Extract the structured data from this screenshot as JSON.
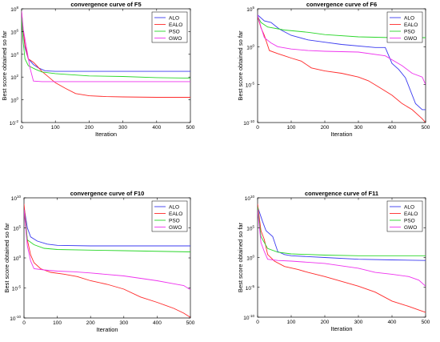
{
  "chart_data": [
    {
      "type": "line",
      "title": "convergence curve of F5",
      "xlabel": "Iteration",
      "ylabel": "Best score obtained so far",
      "xlim": [
        0,
        500
      ],
      "ylim_exp": [
        -2,
        8
      ],
      "x_ticks": [
        0,
        100,
        200,
        300,
        400,
        500
      ],
      "y_ticks": [
        {
          "base": "10",
          "exp": "8"
        },
        {
          "base": "10",
          "exp": "6"
        },
        {
          "base": "10",
          "exp": "4"
        },
        {
          "base": "10",
          "exp": "2"
        },
        {
          "base": "10",
          "exp": "0"
        },
        {
          "base": "10",
          "exp": "-2"
        }
      ],
      "y_scale": "log",
      "legend_position": "top-right",
      "series": [
        {
          "name": "ALO",
          "color": "#3b3bf0",
          "points": [
            [
              0,
              7.4
            ],
            [
              5,
              6.0
            ],
            [
              10,
              4.6
            ],
            [
              20,
              3.6
            ],
            [
              35,
              3.1
            ],
            [
              50,
              2.8
            ],
            [
              70,
              2.55
            ],
            [
              100,
              2.5
            ],
            [
              200,
              2.5
            ],
            [
              500,
              2.5
            ]
          ]
        },
        {
          "name": "EALO",
          "color": "#ff2a2a",
          "points": [
            [
              0,
              7.8
            ],
            [
              3,
              6.6
            ],
            [
              10,
              4.8
            ],
            [
              20,
              3.6
            ],
            [
              35,
              3.3
            ],
            [
              45,
              3.0
            ],
            [
              60,
              2.5
            ],
            [
              80,
              2.0
            ],
            [
              100,
              1.5
            ],
            [
              130,
              1.0
            ],
            [
              160,
              0.55
            ],
            [
              200,
              0.35
            ],
            [
              250,
              0.28
            ],
            [
              300,
              0.25
            ],
            [
              400,
              0.22
            ],
            [
              500,
              0.22
            ]
          ]
        },
        {
          "name": "PSO",
          "color": "#2ad62a",
          "points": [
            [
              0,
              7.2
            ],
            [
              5,
              5.0
            ],
            [
              10,
              3.6
            ],
            [
              20,
              3.0
            ],
            [
              40,
              2.7
            ],
            [
              60,
              2.45
            ],
            [
              100,
              2.3
            ],
            [
              200,
              2.1
            ],
            [
              300,
              2.05
            ],
            [
              400,
              1.95
            ],
            [
              500,
              1.9
            ]
          ]
        },
        {
          "name": "GWO",
          "color": "#ee33ee",
          "points": [
            [
              0,
              7.8
            ],
            [
              5,
              6.2
            ],
            [
              15,
              4.5
            ],
            [
              25,
              2.8
            ],
            [
              35,
              1.65
            ],
            [
              60,
              1.6
            ],
            [
              500,
              1.6
            ]
          ]
        }
      ]
    },
    {
      "type": "line",
      "title": "convergence curve of F6",
      "xlabel": "Iteration",
      "ylabel": "Best score obtained so far",
      "xlim": [
        0,
        500
      ],
      "ylim_exp": [
        -10,
        5
      ],
      "x_ticks": [
        0,
        100,
        200,
        300,
        400,
        500
      ],
      "y_ticks": [
        {
          "base": "10",
          "exp": "5"
        },
        {
          "base": "10",
          "exp": "0"
        },
        {
          "base": "10",
          "exp": "-5"
        },
        {
          "base": "10",
          "exp": "-10"
        }
      ],
      "y_scale": "log",
      "legend_position": "top-right",
      "series": [
        {
          "name": "ALO",
          "color": "#3b3bf0",
          "points": [
            [
              0,
              4.2
            ],
            [
              20,
              3.4
            ],
            [
              40,
              3.2
            ],
            [
              60,
              2.5
            ],
            [
              70,
              2.2
            ],
            [
              100,
              1.5
            ],
            [
              150,
              0.9
            ],
            [
              200,
              0.6
            ],
            [
              250,
              0.3
            ],
            [
              350,
              -0.1
            ],
            [
              380,
              -0.1
            ],
            [
              400,
              -2.2
            ],
            [
              420,
              -3.0
            ],
            [
              440,
              -4.1
            ],
            [
              470,
              -7.5
            ],
            [
              490,
              -8.3
            ],
            [
              500,
              -8.3
            ]
          ]
        },
        {
          "name": "EALO",
          "color": "#ff2a2a",
          "points": [
            [
              0,
              4.0
            ],
            [
              10,
              2.5
            ],
            [
              20,
              1.5
            ],
            [
              35,
              -0.5
            ],
            [
              60,
              -0.9
            ],
            [
              80,
              -1.2
            ],
            [
              100,
              -1.5
            ],
            [
              130,
              -1.9
            ],
            [
              160,
              -2.8
            ],
            [
              200,
              -3.2
            ],
            [
              250,
              -3.5
            ],
            [
              300,
              -4.0
            ],
            [
              330,
              -4.5
            ],
            [
              360,
              -5.3
            ],
            [
              400,
              -6.4
            ],
            [
              430,
              -7.5
            ],
            [
              460,
              -8.3
            ],
            [
              490,
              -9.5
            ],
            [
              500,
              -10.0
            ]
          ]
        },
        {
          "name": "PSO",
          "color": "#2ad62a",
          "points": [
            [
              0,
              4.0
            ],
            [
              10,
              3.2
            ],
            [
              30,
              2.6
            ],
            [
              80,
              2.2
            ],
            [
              150,
              1.9
            ],
            [
              200,
              1.6
            ],
            [
              300,
              1.3
            ],
            [
              400,
              1.2
            ],
            [
              500,
              1.2
            ]
          ]
        },
        {
          "name": "GWO",
          "color": "#ee33ee",
          "points": [
            [
              0,
              4.2
            ],
            [
              10,
              2.6
            ],
            [
              20,
              1.2
            ],
            [
              40,
              0.5
            ],
            [
              60,
              0.0
            ],
            [
              100,
              -0.3
            ],
            [
              150,
              -0.5
            ],
            [
              200,
              -0.6
            ],
            [
              300,
              -0.7
            ],
            [
              380,
              -1.2
            ],
            [
              430,
              -2.5
            ],
            [
              460,
              -3.5
            ],
            [
              490,
              -4.0
            ],
            [
              500,
              -5.0
            ]
          ]
        }
      ]
    },
    {
      "type": "line",
      "title": "convergence curve of F10",
      "xlabel": "Iteration",
      "ylabel": "Best score obtained so far",
      "xlim": [
        0,
        500
      ],
      "ylim_exp": [
        -10,
        10
      ],
      "x_ticks": [
        0,
        100,
        200,
        300,
        400,
        500
      ],
      "y_ticks": [
        {
          "base": "10",
          "exp": "10"
        },
        {
          "base": "10",
          "exp": "5"
        },
        {
          "base": "10",
          "exp": "0"
        },
        {
          "base": "10",
          "exp": "-5"
        },
        {
          "base": "10",
          "exp": "-10"
        }
      ],
      "y_scale": "log",
      "legend_position": "top-right",
      "series": [
        {
          "name": "ALO",
          "color": "#3b3bf0",
          "points": [
            [
              0,
              8.5
            ],
            [
              10,
              5.0
            ],
            [
              20,
              3.5
            ],
            [
              40,
              2.8
            ],
            [
              70,
              2.3
            ],
            [
              100,
              2.1
            ],
            [
              200,
              2.0
            ],
            [
              500,
              2.0
            ]
          ]
        },
        {
          "name": "EALO",
          "color": "#ff2a2a",
          "points": [
            [
              0,
              9.0
            ],
            [
              10,
              3.0
            ],
            [
              20,
              0.5
            ],
            [
              30,
              -0.8
            ],
            [
              50,
              -1.8
            ],
            [
              80,
              -2.4
            ],
            [
              120,
              -2.7
            ],
            [
              160,
              -3.1
            ],
            [
              200,
              -3.8
            ],
            [
              250,
              -4.4
            ],
            [
              300,
              -5.2
            ],
            [
              350,
              -6.5
            ],
            [
              400,
              -7.4
            ],
            [
              450,
              -8.4
            ],
            [
              480,
              -9.2
            ],
            [
              500,
              -9.9
            ]
          ]
        },
        {
          "name": "PSO",
          "color": "#2ad62a",
          "points": [
            [
              0,
              8.0
            ],
            [
              10,
              3.0
            ],
            [
              30,
              2.2
            ],
            [
              60,
              1.6
            ],
            [
              100,
              1.4
            ],
            [
              200,
              1.3
            ],
            [
              300,
              1.2
            ],
            [
              500,
              1.0
            ]
          ]
        },
        {
          "name": "GWO",
          "color": "#ee33ee",
          "points": [
            [
              0,
              8.0
            ],
            [
              10,
              2.0
            ],
            [
              20,
              -0.5
            ],
            [
              30,
              -1.8
            ],
            [
              60,
              -2.0
            ],
            [
              100,
              -2.2
            ],
            [
              150,
              -2.3
            ],
            [
              200,
              -2.5
            ],
            [
              300,
              -3.0
            ],
            [
              400,
              -3.8
            ],
            [
              450,
              -4.3
            ],
            [
              480,
              -4.6
            ],
            [
              500,
              -5.3
            ]
          ]
        }
      ]
    },
    {
      "type": "line",
      "title": "convergence curve of F11",
      "xlabel": "Iteration",
      "ylabel": "Best score obtained so far",
      "xlim": [
        0,
        500
      ],
      "ylim_exp": [
        -10,
        10
      ],
      "x_ticks": [
        0,
        100,
        200,
        300,
        400,
        500
      ],
      "y_ticks": [
        {
          "base": "10",
          "exp": "10"
        },
        {
          "base": "10",
          "exp": "5"
        },
        {
          "base": "10",
          "exp": "0"
        },
        {
          "base": "10",
          "exp": "-5"
        },
        {
          "base": "10",
          "exp": "-10"
        }
      ],
      "y_scale": "log",
      "legend_position": "top-right",
      "series": [
        {
          "name": "ALO",
          "color": "#3b3bf0",
          "points": [
            [
              0,
              8.5
            ],
            [
              15,
              6.0
            ],
            [
              25,
              4.5
            ],
            [
              45,
              3.5
            ],
            [
              60,
              1.0
            ],
            [
              80,
              0.5
            ],
            [
              100,
              0.3
            ],
            [
              200,
              0.0
            ],
            [
              300,
              -0.3
            ],
            [
              400,
              -0.4
            ],
            [
              500,
              -0.5
            ]
          ]
        },
        {
          "name": "EALO",
          "color": "#ff2a2a",
          "points": [
            [
              0,
              9.0
            ],
            [
              10,
              4.5
            ],
            [
              20,
              3.0
            ],
            [
              30,
              0.5
            ],
            [
              50,
              -0.6
            ],
            [
              80,
              -1.5
            ],
            [
              120,
              -2.0
            ],
            [
              150,
              -2.5
            ],
            [
              200,
              -3.2
            ],
            [
              250,
              -4.0
            ],
            [
              300,
              -4.8
            ],
            [
              350,
              -5.8
            ],
            [
              400,
              -7.3
            ],
            [
              450,
              -8.2
            ],
            [
              480,
              -8.8
            ],
            [
              500,
              -9.2
            ]
          ]
        },
        {
          "name": "PSO",
          "color": "#2ad62a",
          "points": [
            [
              0,
              8.5
            ],
            [
              10,
              3.5
            ],
            [
              30,
              1.5
            ],
            [
              60,
              0.9
            ],
            [
              100,
              0.6
            ],
            [
              200,
              0.4
            ],
            [
              300,
              0.3
            ],
            [
              500,
              0.3
            ]
          ]
        },
        {
          "name": "GWO",
          "color": "#ee33ee",
          "points": [
            [
              0,
              8.0
            ],
            [
              10,
              2.5
            ],
            [
              20,
              1.0
            ],
            [
              30,
              -0.3
            ],
            [
              60,
              -0.5
            ],
            [
              100,
              -0.6
            ],
            [
              200,
              -1.0
            ],
            [
              300,
              -1.8
            ],
            [
              350,
              -2.5
            ],
            [
              400,
              -2.8
            ],
            [
              450,
              -3.2
            ],
            [
              480,
              -3.8
            ],
            [
              500,
              -4.8
            ]
          ]
        }
      ]
    }
  ]
}
